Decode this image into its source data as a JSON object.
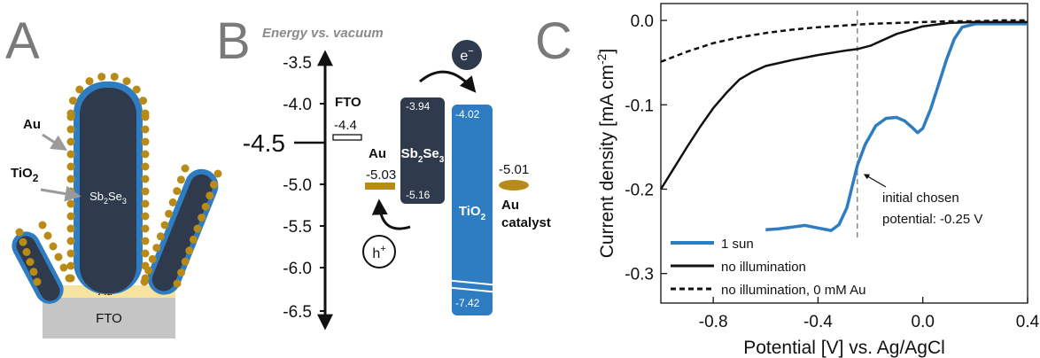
{
  "colors": {
    "sb2se3": "#2f3b4c",
    "tio2": "#2e7dc2",
    "gold": "#b88a17",
    "au_layer": "#f7e3a0",
    "fto": "#c5c5c5",
    "letter": "#7a7a7a",
    "sun_curve": "#2e7dc2",
    "dark_curve": "#111111"
  },
  "panel_a": {
    "letter": "A",
    "au_label": "Au",
    "tio2_label_main": "TiO",
    "tio2_label_sub": "2",
    "sb_label_main": "Sb",
    "sb_label_sub1": "2",
    "sb_label_mid": "Se",
    "sb_label_sub2": "3",
    "au_layer_label": "Au",
    "fto_label": "FTO"
  },
  "panel_b": {
    "letter": "B",
    "axis_title": "Energy vs. vacuum",
    "ticks": [
      "-3.5",
      "-4.0",
      "-4.5",
      "-5.0",
      "-5.5",
      "-6.0",
      "-6.5"
    ],
    "big_tick": "-4.5",
    "fto": {
      "label": "FTO",
      "value": "-4.4"
    },
    "au": {
      "label": "Au",
      "value": "-5.03"
    },
    "sb2se3": {
      "top": "-3.94",
      "bottom": "-5.16",
      "name_main": "Sb",
      "name_sub1": "2",
      "name_mid": "Se",
      "name_sub2": "3"
    },
    "tio2": {
      "top": "-4.02",
      "bottom": "-7.42",
      "name_main": "TiO",
      "name_sub": "2"
    },
    "au_catalyst": {
      "value": "-5.01",
      "label1": "Au",
      "label2": "catalyst"
    },
    "electron": "e",
    "electron_sup": "−",
    "hole": "h",
    "hole_sup": "+"
  },
  "panel_c": {
    "letter": "C",
    "annotation_line1": "initial chosen",
    "annotation_line2": "potential: -0.25 V"
  },
  "chart_data": {
    "type": "line",
    "xlabel": "Potential [V] vs. Ag/AgCl",
    "ylabel_main": "Current density [mA cm",
    "ylabel_sup": "-2",
    "ylabel_end": "]",
    "xlim": [
      -1.0,
      0.4
    ],
    "ylim": [
      -0.335,
      0.02
    ],
    "xticks": [
      -0.8,
      -0.4,
      0.0,
      0.4
    ],
    "xtick_labels": [
      "-0.8",
      "-0.4",
      "0.0",
      "0.4"
    ],
    "yticks": [
      0.0,
      -0.1,
      -0.2,
      -0.3
    ],
    "ytick_labels": [
      "0.0",
      "-0.1",
      "-0.2",
      "-0.3"
    ],
    "vline_x": -0.25,
    "legend_position": "bottom-left",
    "series": [
      {
        "name": "1 sun",
        "style": "solid-blue",
        "x": [
          -0.6,
          -0.55,
          -0.5,
          -0.45,
          -0.4,
          -0.35,
          -0.32,
          -0.29,
          -0.27,
          -0.25,
          -0.22,
          -0.18,
          -0.14,
          -0.1,
          -0.07,
          -0.04,
          -0.02,
          0.0,
          0.03,
          0.06,
          0.09,
          0.12,
          0.15,
          0.2,
          0.3,
          0.4
        ],
        "y": [
          -0.248,
          -0.247,
          -0.245,
          -0.243,
          -0.246,
          -0.249,
          -0.242,
          -0.222,
          -0.197,
          -0.172,
          -0.147,
          -0.125,
          -0.116,
          -0.115,
          -0.119,
          -0.127,
          -0.133,
          -0.128,
          -0.105,
          -0.076,
          -0.047,
          -0.022,
          -0.008,
          -0.004,
          -0.004,
          -0.004
        ]
      },
      {
        "name": "no illumination",
        "style": "solid-black",
        "x": [
          -1.0,
          -0.95,
          -0.9,
          -0.85,
          -0.8,
          -0.75,
          -0.7,
          -0.65,
          -0.6,
          -0.5,
          -0.4,
          -0.3,
          -0.25,
          -0.2,
          -0.1,
          0.0,
          0.1,
          0.2,
          0.3,
          0.4
        ],
        "y": [
          -0.2,
          -0.175,
          -0.15,
          -0.126,
          -0.104,
          -0.086,
          -0.07,
          -0.061,
          -0.054,
          -0.047,
          -0.041,
          -0.036,
          -0.034,
          -0.03,
          -0.016,
          -0.007,
          -0.003,
          -0.002,
          -0.002,
          -0.002
        ]
      },
      {
        "name": "no illumination, 0 mM Au",
        "style": "dashed-black",
        "x": [
          -1.0,
          -0.9,
          -0.8,
          -0.7,
          -0.6,
          -0.5,
          -0.4,
          -0.3,
          -0.2,
          -0.1,
          0.0,
          0.1,
          0.2,
          0.3,
          0.4
        ],
        "y": [
          -0.049,
          -0.037,
          -0.027,
          -0.02,
          -0.015,
          -0.011,
          -0.008,
          -0.006,
          -0.004,
          -0.003,
          -0.002,
          -0.001,
          -0.001,
          0.0,
          0.0
        ]
      }
    ]
  }
}
